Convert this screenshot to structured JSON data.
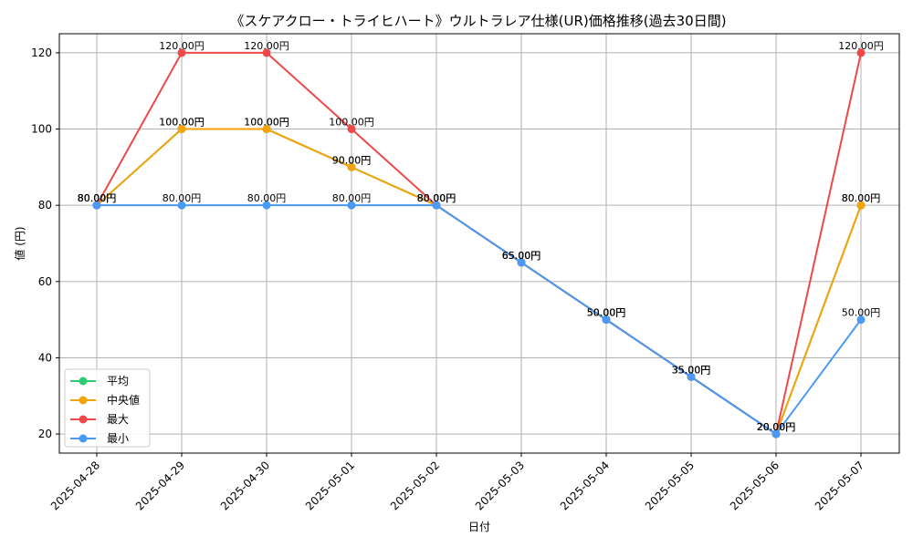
{
  "chart_data": {
    "type": "line",
    "title": "《スケアクロー・トライヒハート》ウルトラレア仕様(UR)価格推移(過去30日間)",
    "xlabel": "日付",
    "ylabel": "値 (円)",
    "ylim": [
      15,
      125
    ],
    "yticks": [
      20,
      40,
      60,
      80,
      100,
      120
    ],
    "grid": true,
    "legend_position": "lower-left",
    "label_suffix": "円",
    "categories": [
      "2025-04-28",
      "2025-04-29",
      "2025-04-30",
      "2025-05-01",
      "2025-05-02",
      "2025-05-03",
      "2025-05-04",
      "2025-05-05",
      "2025-05-06",
      "2025-05-07"
    ],
    "series": [
      {
        "name": "平均",
        "color": "#2ecc71",
        "values": [
          80,
          100,
          100,
          90,
          80,
          65,
          50,
          35,
          20,
          80
        ]
      },
      {
        "name": "中央値",
        "color": "#f5a30a",
        "values": [
          80,
          100,
          100,
          90,
          80,
          65,
          50,
          35,
          20,
          80
        ]
      },
      {
        "name": "最大",
        "color": "#f04848",
        "values": [
          80,
          120,
          120,
          100,
          80,
          65,
          50,
          35,
          20,
          120
        ]
      },
      {
        "name": "最小",
        "color": "#4a9af5",
        "values": [
          80,
          80,
          80,
          80,
          80,
          65,
          50,
          35,
          20,
          50
        ]
      }
    ]
  }
}
